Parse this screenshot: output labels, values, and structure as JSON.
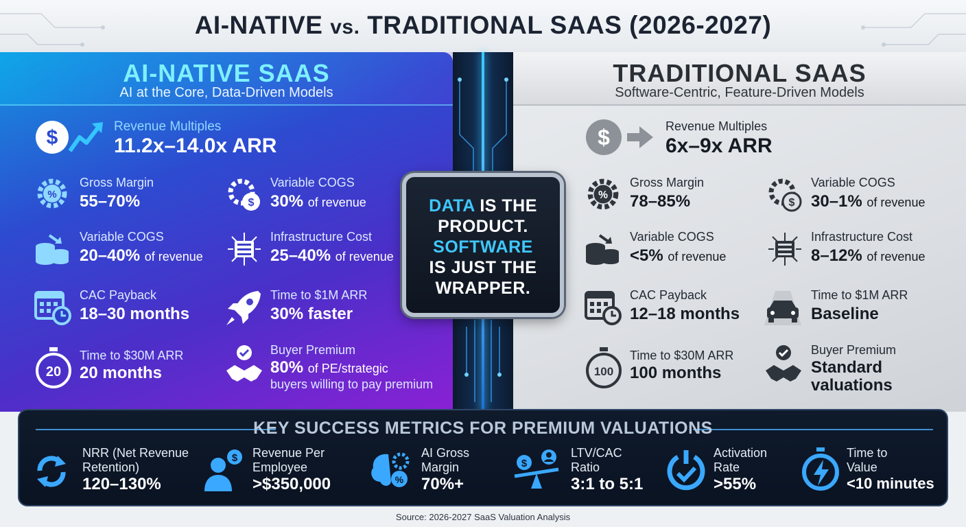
{
  "title": {
    "main": "AI-NATIVE",
    "vs": "vs.",
    "rest": "TRADITIONAL SAAS (2026-2027)"
  },
  "ai_native": {
    "heading": "AI-NATIVE SAAS",
    "subtitle": "AI at the Core, Data-Driven Models",
    "revenue": {
      "label": "Revenue Multiples",
      "value": "11.2x–14.0x ARR"
    },
    "metrics": [
      {
        "icon": "percent-gear-icon",
        "label": "Gross Margin",
        "value": "55–70%",
        "suffix": ""
      },
      {
        "icon": "gear-dollar-icon",
        "label": "Variable COGS",
        "value": "30%",
        "suffix": "of revenue"
      },
      {
        "icon": "coins-stack-icon",
        "label": "Variable COGS",
        "value": "20–40%",
        "suffix": "of revenue"
      },
      {
        "icon": "server-network-icon",
        "label": "Infrastructure Cost",
        "value": "25–40%",
        "suffix": "of revenue"
      },
      {
        "icon": "calendar-clock-icon",
        "label": "CAC Payback",
        "value": "18–30 months",
        "suffix": ""
      },
      {
        "icon": "rocket-icon",
        "label": "Time to $1M ARR",
        "value": "30% faster",
        "suffix": ""
      },
      {
        "icon": "stopwatch-icon",
        "badge": "20",
        "label": "Time to $30M ARR",
        "value": "20 months",
        "suffix": ""
      },
      {
        "icon": "handshake-badge-icon",
        "label": "Buyer Premium",
        "value": "80%",
        "suffix": "of PE/strategic",
        "extra": "buyers willing to pay premium"
      }
    ]
  },
  "traditional": {
    "heading": "TRADITIONAL SAAS",
    "subtitle": "Software-Centric, Feature-Driven Models",
    "revenue": {
      "label": "Revenue Multiples",
      "value": "6x–9x ARR"
    },
    "metrics": [
      {
        "icon": "percent-gear-icon",
        "label": "Gross Margin",
        "value": "78–85%",
        "suffix": ""
      },
      {
        "icon": "gear-dollar-icon",
        "label": "Variable COGS",
        "value": "30–1%",
        "suffix": "of revenue"
      },
      {
        "icon": "coins-stack-icon",
        "label": "Variable COGS",
        "value": "<5%",
        "suffix": "of revenue"
      },
      {
        "icon": "server-network-icon",
        "label": "Infrastructure Cost",
        "value": "8–12%",
        "suffix": "of revenue"
      },
      {
        "icon": "calendar-clock-icon",
        "label": "CAC Payback",
        "value": "12–18 months",
        "suffix": ""
      },
      {
        "icon": "car-road-icon",
        "label": "Time to $1M ARR",
        "value": "Baseline",
        "suffix": ""
      },
      {
        "icon": "stopwatch-icon",
        "badge": "100",
        "label": "Time to $30M ARR",
        "value": "100 months",
        "suffix": ""
      },
      {
        "icon": "handshake-badge-icon",
        "label": "Buyer Premium",
        "value": "Standard",
        "suffix": "",
        "extra": "valuations"
      }
    ]
  },
  "center": {
    "line1_accent": "DATA",
    "line1_rest": "IS THE",
    "line2": "PRODUCT.",
    "line3": "SOFTWARE",
    "line4": "IS JUST THE",
    "line5": "WRAPPER."
  },
  "key_metrics": {
    "title": "KEY SUCCESS METRICS FOR PREMIUM VALUATIONS",
    "items": [
      {
        "icon": "refresh-cycle-icon",
        "label1": "NRR (Net Revenue",
        "label2": "Retention)",
        "value": "120–130%"
      },
      {
        "icon": "employee-dollar-icon",
        "label1": "Revenue Per",
        "label2": "Employee",
        "value": ">$350,000"
      },
      {
        "icon": "brain-gear-icon",
        "label1": "AI Gross",
        "label2": "Margin",
        "value": "70%+"
      },
      {
        "icon": "balance-scale-icon",
        "label1": "LTV/CAC",
        "label2": "Ratio",
        "value": "3:1 to 5:1"
      },
      {
        "icon": "power-check-icon",
        "label1": "Activation",
        "label2": "Rate",
        "value": ">55%"
      },
      {
        "icon": "stopwatch-bolt-icon",
        "label1": "Time to",
        "label2": "Value",
        "value": "<10 minutes"
      }
    ]
  },
  "source": "Source: 2026-2027 SaaS Valuation Analysis",
  "colors": {
    "ai_accent": "#7ef0ff",
    "ai_icon": "#8fd8ff",
    "trad_icon": "#2f353c",
    "center_accent": "#3fc8ff"
  }
}
